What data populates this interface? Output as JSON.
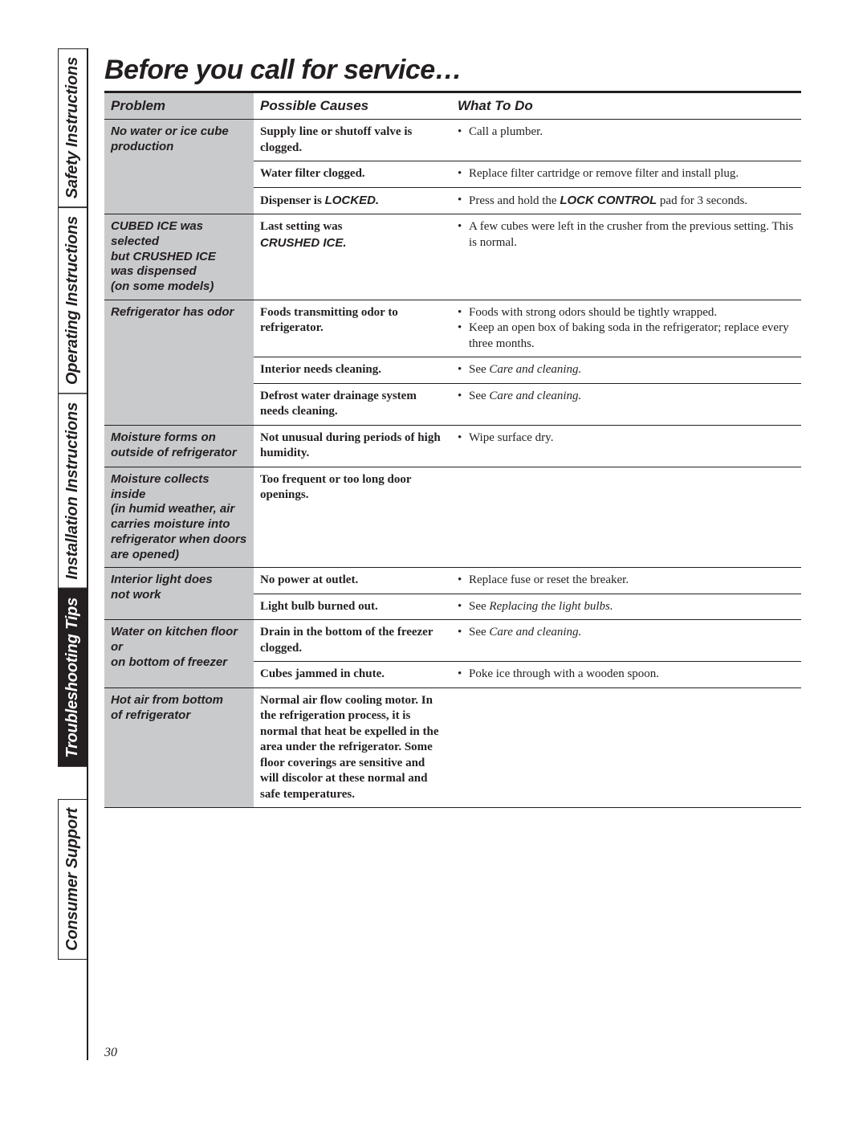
{
  "page": {
    "title": "Before you call for service…",
    "number": "30"
  },
  "tabs": [
    {
      "label": "Safety Instructions",
      "active": false
    },
    {
      "label": "Operating Instructions",
      "active": false
    },
    {
      "label": "Installation Instructions",
      "active": false
    },
    {
      "label": "Troubleshooting Tips",
      "active": true
    },
    {
      "label": "Consumer Support",
      "active": false
    }
  ],
  "headers": {
    "problem": "Problem",
    "causes": "Possible Causes",
    "todo": "What To Do"
  },
  "rows": [
    {
      "problem": "No water or ice cube production",
      "items": [
        {
          "cause_plain": "Supply line or shutoff valve is clogged.",
          "todos": [
            {
              "plain": "Call a plumber."
            }
          ]
        },
        {
          "cause_plain": "Water filter clogged.",
          "todos": [
            {
              "plain": "Replace filter cartridge or remove filter and install plug."
            }
          ]
        },
        {
          "cause_html": "Dispenser is <span class='boldcond'>LOCKED.</span>",
          "todos": [
            {
              "html": "Press and hold the <span class='boldcond'>LOCK CONTROL</span> pad for 3 seconds."
            }
          ]
        }
      ]
    },
    {
      "problem_html": "CUBED ICE was selected<br>but CRUSHED ICE<br>was dispensed<br>(on some models)",
      "items": [
        {
          "cause_html": "Last setting was<br><span class='boldcond'>CRUSHED ICE.</span>",
          "todos": [
            {
              "plain": "A few cubes were left in the crusher from the previous setting. This is normal."
            }
          ]
        }
      ]
    },
    {
      "problem": "Refrigerator has odor",
      "items": [
        {
          "cause_plain": "Foods transmitting odor to refrigerator.",
          "todos": [
            {
              "plain": "Foods with strong odors should be tightly wrapped."
            },
            {
              "plain": "Keep an open box of baking soda in the refrigerator; replace every three months."
            }
          ]
        },
        {
          "cause_plain": "Interior needs cleaning.",
          "todos": [
            {
              "html": "See <span class='ital'>Care and cleaning.</span>"
            }
          ]
        },
        {
          "cause_plain": "Defrost water drainage system needs cleaning.",
          "todos": [
            {
              "html": "See <span class='ital'>Care and cleaning.</span>"
            }
          ]
        }
      ]
    },
    {
      "problem": "Moisture forms on outside of refrigerator",
      "items": [
        {
          "cause_plain": "Not unusual during periods of high humidity.",
          "todos": [
            {
              "plain": "Wipe surface dry."
            }
          ]
        }
      ]
    },
    {
      "problem_html": "Moisture collects inside<br>(in humid weather, air<br>carries moisture into<br>refrigerator when doors<br>are opened)",
      "items": [
        {
          "cause_plain": "Too frequent or too long door openings.",
          "todos": []
        }
      ]
    },
    {
      "problem_html": "Interior light does<br>not work",
      "items": [
        {
          "cause_plain": "No power at outlet.",
          "todos": [
            {
              "plain": "Replace fuse or reset the breaker."
            }
          ]
        },
        {
          "cause_plain": "Light bulb burned out.",
          "todos": [
            {
              "html": "See <span class='ital'>Replacing the light bulbs.</span>"
            }
          ]
        }
      ]
    },
    {
      "problem_html": "Water on kitchen floor or<br>on bottom of freezer",
      "items": [
        {
          "cause_plain": "Drain in the bottom of the freezer clogged.",
          "todos": [
            {
              "html": "See <span class='ital'>Care and cleaning.</span>"
            }
          ]
        },
        {
          "cause_plain": "Cubes jammed in chute.",
          "todos": [
            {
              "plain": "Poke ice through with a wooden spoon."
            }
          ]
        }
      ]
    },
    {
      "problem_html": "Hot air from bottom<br>of refrigerator",
      "items": [
        {
          "cause_plain": "Normal air flow cooling motor. In the refrigeration process, it is normal that heat be expelled in the area under the refrigerator. Some floor coverings are sensitive and will discolor at these normal and safe temperatures.",
          "todos": []
        }
      ]
    }
  ]
}
